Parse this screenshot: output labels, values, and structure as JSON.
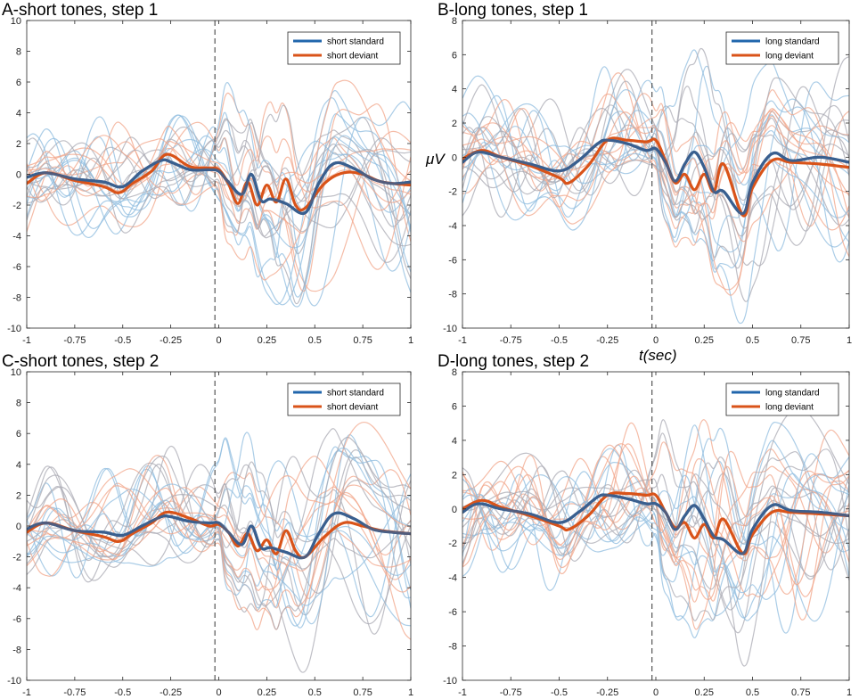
{
  "figure": {
    "xlabel": "t(sec)",
    "ylabel": "μV"
  },
  "colors": {
    "standard": "#2166ac",
    "deviant": "#d95319",
    "standard_bold": "#3a5f8f",
    "deviant_bold": "#d95319",
    "faint_standard": "#8fbcdf",
    "faint_deviant": "#f2a58a",
    "faint_gray": "#a9a9b3"
  },
  "chart_data": [
    {
      "type": "line",
      "title": "A-short tones, step 1",
      "xlim": [
        -1,
        1
      ],
      "ylim": [
        -10,
        10
      ],
      "xticks": [
        -1,
        -0.75,
        -0.5,
        -0.25,
        0,
        0.25,
        0.5,
        0.75,
        1
      ],
      "xtick_labels": [
        "-1",
        "-0.75",
        "-0.5",
        "-0.25",
        "0",
        "0.25",
        "0.5",
        "0.75",
        "1"
      ],
      "yticks": [
        -10,
        -8,
        -6,
        -4,
        -2,
        0,
        2,
        4,
        6,
        8,
        10
      ],
      "ytick_labels": [
        "-10",
        "-8",
        "-6",
        "-4",
        "-2",
        "0",
        "2",
        "4",
        "6",
        "8",
        "10"
      ],
      "legend": [
        "short standard",
        "short deviant"
      ],
      "legend_position": "top-right",
      "stimulus_onset": -0.02,
      "series": [
        {
          "name": "short standard",
          "x": [
            -1,
            -0.9,
            -0.75,
            -0.6,
            -0.5,
            -0.4,
            -0.3,
            -0.25,
            -0.15,
            -0.05,
            0,
            0.05,
            0.12,
            0.17,
            0.22,
            0.27,
            0.35,
            0.45,
            0.52,
            0.6,
            0.7,
            0.8,
            0.9,
            1
          ],
          "values": [
            -0.2,
            0.1,
            -0.3,
            -0.5,
            -0.8,
            0.2,
            0.9,
            0.8,
            0.3,
            0.3,
            0.2,
            -0.5,
            -1.3,
            0.0,
            -1.7,
            -1.6,
            -1.9,
            -2.5,
            -0.6,
            0.7,
            0.4,
            -0.3,
            -0.6,
            -0.5
          ]
        },
        {
          "name": "short deviant",
          "x": [
            -1,
            -0.9,
            -0.75,
            -0.6,
            -0.52,
            -0.45,
            -0.35,
            -0.27,
            -0.15,
            -0.05,
            0,
            0.05,
            0.1,
            0.15,
            0.2,
            0.25,
            0.3,
            0.35,
            0.4,
            0.45,
            0.55,
            0.65,
            0.75,
            0.85,
            1
          ],
          "values": [
            -0.6,
            0.1,
            -0.4,
            -0.8,
            -1.2,
            -0.6,
            0.2,
            1.3,
            0.5,
            0.4,
            0.3,
            -0.6,
            -1.9,
            -0.5,
            -2.0,
            -0.7,
            -1.8,
            -0.3,
            -2.0,
            -2.2,
            -0.6,
            0.1,
            0.0,
            -0.5,
            -0.7
          ]
        }
      ]
    },
    {
      "type": "line",
      "title": "B-long tones, step 1",
      "xlim": [
        -1,
        1
      ],
      "ylim": [
        -10,
        8
      ],
      "xticks": [
        -1,
        -0.75,
        -0.5,
        -0.25,
        0,
        0.25,
        0.5,
        0.75,
        1
      ],
      "xtick_labels": [
        "-1",
        "-0.75",
        "-0.5",
        "-0.25",
        "0",
        "0.25",
        "0.5",
        "0.75",
        "1"
      ],
      "yticks": [
        -10,
        -8,
        -6,
        -4,
        -2,
        0,
        2,
        4,
        6,
        8
      ],
      "ytick_labels": [
        "-10",
        "-8",
        "-6",
        "-4",
        "-2",
        "0",
        "2",
        "4",
        "6",
        "8"
      ],
      "legend": [
        "long standard",
        "long deviant"
      ],
      "legend_position": "top-right",
      "stimulus_onset": -0.02,
      "series": [
        {
          "name": "long standard",
          "x": [
            -1,
            -0.92,
            -0.8,
            -0.65,
            -0.5,
            -0.4,
            -0.3,
            -0.25,
            -0.15,
            -0.05,
            0,
            0.05,
            0.1,
            0.15,
            0.2,
            0.25,
            0.3,
            0.35,
            0.45,
            0.5,
            0.6,
            0.7,
            0.85,
            1
          ],
          "values": [
            -0.3,
            0.3,
            0.0,
            -0.4,
            -0.8,
            -0.2,
            0.8,
            1.0,
            0.8,
            0.4,
            0.5,
            -0.3,
            -1.4,
            -0.4,
            0.3,
            -0.6,
            -2.0,
            -2.0,
            -3.3,
            -1.5,
            0.2,
            -0.2,
            0.0,
            -0.3
          ]
        },
        {
          "name": "long deviant",
          "x": [
            -1,
            -0.9,
            -0.8,
            -0.65,
            -0.5,
            -0.45,
            -0.35,
            -0.25,
            -0.15,
            -0.05,
            0,
            0.05,
            0.1,
            0.15,
            0.2,
            0.25,
            0.3,
            0.35,
            0.45,
            0.5,
            0.6,
            0.7,
            0.85,
            1
          ],
          "values": [
            -0.1,
            0.4,
            0.0,
            -0.5,
            -1.2,
            -1.5,
            -0.5,
            1.0,
            1.0,
            0.9,
            1.0,
            -0.2,
            -1.5,
            -1.0,
            -1.9,
            -1.0,
            -2.0,
            -0.4,
            -3.4,
            -1.8,
            -0.2,
            -0.3,
            -0.4,
            -0.6
          ]
        }
      ]
    },
    {
      "type": "line",
      "title": "C-short tones, step 2",
      "xlim": [
        -1,
        1
      ],
      "ylim": [
        -10,
        10
      ],
      "xticks": [
        -1,
        -0.75,
        -0.5,
        -0.25,
        0,
        0.25,
        0.5,
        0.75,
        1
      ],
      "xtick_labels": [
        "-1",
        "-0.75",
        "-0.5",
        "-0.25",
        "0",
        "0.25",
        "0.5",
        "0.75",
        "1"
      ],
      "yticks": [
        -10,
        -8,
        -6,
        -4,
        -2,
        0,
        2,
        4,
        6,
        8,
        10
      ],
      "ytick_labels": [
        "-10",
        "-8",
        "-6",
        "-4",
        "-2",
        "0",
        "2",
        "4",
        "6",
        "8",
        "10"
      ],
      "legend": [
        "short standard",
        "short deviant"
      ],
      "legend_position": "top-right",
      "stimulus_onset": -0.02,
      "series": [
        {
          "name": "short standard",
          "x": [
            -1,
            -0.9,
            -0.75,
            -0.6,
            -0.5,
            -0.4,
            -0.3,
            -0.25,
            -0.15,
            -0.05,
            0,
            0.05,
            0.12,
            0.17,
            0.22,
            0.27,
            0.35,
            0.45,
            0.52,
            0.6,
            0.7,
            0.8,
            0.9,
            1
          ],
          "values": [
            -0.2,
            0.2,
            -0.3,
            -0.4,
            -0.6,
            0.0,
            0.6,
            0.6,
            0.3,
            0.2,
            0.2,
            -0.4,
            -1.2,
            0.0,
            -1.4,
            -1.4,
            -1.7,
            -2.0,
            -0.5,
            0.8,
            0.5,
            -0.2,
            -0.4,
            -0.5
          ]
        },
        {
          "name": "short deviant",
          "x": [
            -1,
            -0.9,
            -0.75,
            -0.6,
            -0.52,
            -0.45,
            -0.35,
            -0.27,
            -0.15,
            -0.05,
            0,
            0.05,
            0.1,
            0.15,
            0.2,
            0.25,
            0.3,
            0.35,
            0.4,
            0.45,
            0.55,
            0.65,
            0.75,
            0.85,
            1
          ],
          "values": [
            -0.4,
            0.2,
            -0.3,
            -0.7,
            -1.0,
            -0.5,
            0.2,
            0.9,
            0.5,
            0.0,
            0.1,
            -0.4,
            -1.3,
            -0.5,
            -1.6,
            -0.9,
            -1.8,
            -0.3,
            -1.6,
            -2.0,
            -0.7,
            0.2,
            0.0,
            -0.3,
            -0.5
          ]
        }
      ]
    },
    {
      "type": "line",
      "title": "D-long tones, step 2",
      "xlim": [
        -1,
        1
      ],
      "ylim": [
        -10,
        8
      ],
      "xticks": [
        -1,
        -0.75,
        -0.5,
        -0.25,
        0,
        0.25,
        0.5,
        0.75,
        1
      ],
      "xtick_labels": [
        "-1",
        "-0.75",
        "-0.5",
        "-0.25",
        "0",
        "0.25",
        "0.5",
        "0.75",
        "1"
      ],
      "yticks": [
        -10,
        -8,
        -6,
        -4,
        -2,
        0,
        2,
        4,
        6,
        8
      ],
      "ytick_labels": [
        "-10",
        "-8",
        "-6",
        "-4",
        "-2",
        "0",
        "2",
        "4",
        "6",
        "8"
      ],
      "legend": [
        "long standard",
        "long deviant"
      ],
      "legend_position": "top-right",
      "stimulus_onset": -0.02,
      "series": [
        {
          "name": "long standard",
          "x": [
            -1,
            -0.92,
            -0.8,
            -0.65,
            -0.5,
            -0.4,
            -0.3,
            -0.25,
            -0.15,
            -0.05,
            0,
            0.05,
            0.1,
            0.15,
            0.2,
            0.25,
            0.3,
            0.35,
            0.45,
            0.5,
            0.6,
            0.7,
            0.85,
            1
          ],
          "values": [
            -0.2,
            0.3,
            0.0,
            -0.3,
            -0.8,
            -0.2,
            0.7,
            0.8,
            0.6,
            0.3,
            0.3,
            -0.2,
            -1.2,
            -0.4,
            0.2,
            -0.6,
            -1.6,
            -1.8,
            -2.6,
            -1.2,
            0.2,
            -0.1,
            -0.2,
            -0.4
          ]
        },
        {
          "name": "long deviant",
          "x": [
            -1,
            -0.9,
            -0.8,
            -0.65,
            -0.5,
            -0.45,
            -0.35,
            -0.25,
            -0.15,
            -0.05,
            0,
            0.05,
            0.1,
            0.15,
            0.2,
            0.25,
            0.3,
            0.35,
            0.45,
            0.5,
            0.6,
            0.7,
            0.85,
            1
          ],
          "values": [
            0.0,
            0.5,
            0.1,
            -0.4,
            -1.0,
            -1.2,
            -0.4,
            0.8,
            0.9,
            0.8,
            0.8,
            -0.2,
            -1.1,
            -0.8,
            -1.7,
            -0.9,
            -1.7,
            -0.6,
            -2.6,
            -1.5,
            -0.2,
            -0.2,
            -0.3,
            -0.4
          ]
        }
      ]
    }
  ]
}
